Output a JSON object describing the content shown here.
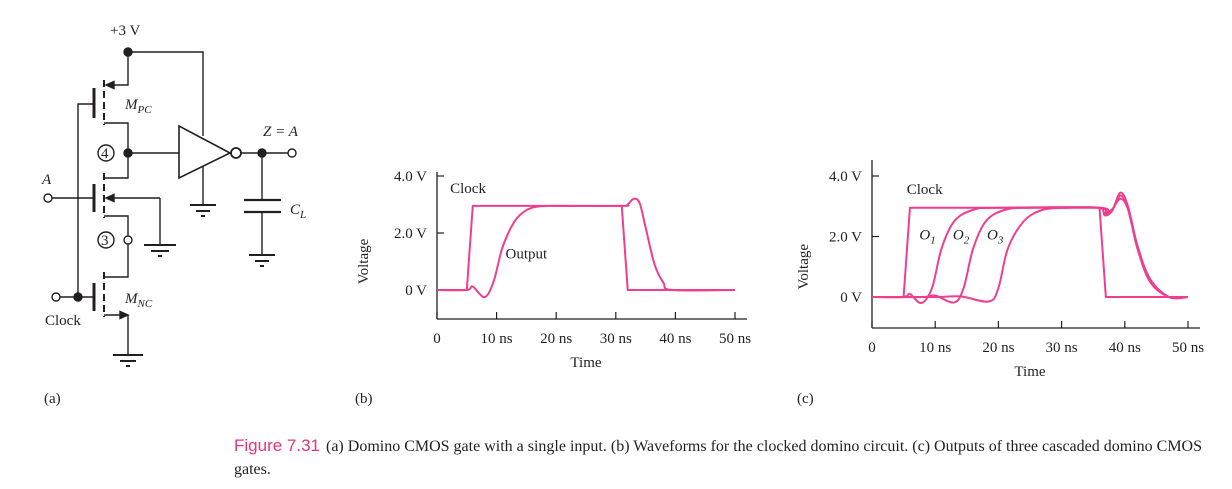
{
  "circuit": {
    "supply_label": "+3 V",
    "pmos_label": "M",
    "pmos_sub": "PC",
    "nmos_label": "M",
    "nmos_sub": "NC",
    "node4_label": "4",
    "node3_label": "3",
    "input_label": "A",
    "clock_label": "Clock",
    "output_label": "Z = A",
    "cap_label": "C",
    "cap_sub": "L"
  },
  "panel_labels": {
    "a": "(a)",
    "b": "(b)",
    "c": "(c)"
  },
  "colors": {
    "trace": "#ee3f8f",
    "caption_accent": "#e8327c",
    "ink": "#231f20"
  },
  "caption": {
    "figure": "Figure 7.31",
    "text": "(a) Domino CMOS gate with a single input. (b) Waveforms for the clocked domino circuit. (c) Outputs of three cascaded domino CMOS gates."
  },
  "chart_data": [
    {
      "type": "line",
      "panel": "b",
      "xlabel": "Time",
      "ylabel": "Voltage",
      "xlim": [
        0,
        50
      ],
      "ylim": [
        -1,
        4.2
      ],
      "xticks": [
        0,
        10,
        20,
        30,
        40,
        50
      ],
      "xtick_labels": [
        "0",
        "10 ns",
        "20 ns",
        "30 ns",
        "40 ns",
        "50 ns"
      ],
      "yticks": [
        0,
        2,
        4
      ],
      "ytick_labels": [
        "0 V",
        "2.0 V",
        "4.0 V"
      ],
      "annotations": [
        {
          "text": "Clock",
          "x": 2.2,
          "y": 3.4
        },
        {
          "text": "Output",
          "x": 11.5,
          "y": 1.1
        }
      ],
      "series": [
        {
          "name": "Clock",
          "interp": "linear",
          "x": [
            0,
            5,
            6,
            31,
            32,
            50
          ],
          "y": [
            0,
            0,
            2.95,
            2.95,
            0,
            0
          ]
        },
        {
          "name": "Output",
          "interp": "smooth",
          "x": [
            0,
            5,
            6,
            8,
            9.5,
            11,
            13,
            15,
            17,
            20,
            31,
            32,
            33,
            34,
            35,
            36.5,
            38,
            39.5,
            50
          ],
          "y": [
            0,
            0,
            0.12,
            -0.25,
            0.3,
            1.5,
            2.4,
            2.8,
            2.93,
            2.95,
            2.95,
            3.0,
            3.2,
            3.05,
            2.2,
            0.9,
            0.25,
            0,
            0
          ]
        }
      ]
    },
    {
      "type": "line",
      "panel": "c",
      "xlabel": "Time",
      "ylabel": "Voltage",
      "xlim": [
        0,
        50
      ],
      "ylim": [
        -1,
        4.3
      ],
      "xticks": [
        0,
        10,
        20,
        30,
        40,
        50
      ],
      "xtick_labels": [
        "0",
        "10 ns",
        "20 ns",
        "30 ns",
        "40 ns",
        "50 ns"
      ],
      "yticks": [
        0,
        2,
        4
      ],
      "ytick_labels": [
        "0 V",
        "2.0 V",
        "4.0 V"
      ],
      "annotations": [
        {
          "text": "Clock",
          "x": 5.5,
          "y": 3.4
        },
        {
          "text": "O",
          "sub": "1",
          "x": 7.5,
          "y": 1.9
        },
        {
          "text": "O",
          "sub": "2",
          "x": 12.8,
          "y": 1.9
        },
        {
          "text": "O",
          "sub": "3",
          "x": 18.2,
          "y": 1.9
        }
      ],
      "series": [
        {
          "name": "Clock",
          "interp": "linear",
          "x": [
            0,
            5,
            6,
            36,
            37,
            50
          ],
          "y": [
            0,
            0,
            2.95,
            2.95,
            0,
            0
          ]
        },
        {
          "name": "O1",
          "interp": "smooth",
          "x": [
            0,
            5,
            6,
            7.8,
            9.5,
            11,
            13,
            16,
            20,
            36,
            36.8,
            38,
            39.3,
            40.5,
            42,
            44,
            47,
            50
          ],
          "y": [
            0,
            0,
            0.1,
            -0.2,
            0.3,
            1.6,
            2.5,
            2.88,
            2.95,
            2.95,
            2.75,
            2.9,
            3.25,
            2.9,
            1.6,
            0.5,
            0,
            0
          ]
        },
        {
          "name": "O2",
          "interp": "smooth",
          "x": [
            0,
            8,
            10,
            13,
            14.5,
            16,
            18,
            21,
            25,
            36,
            36.8,
            38,
            39.3,
            40.5,
            42,
            44,
            47,
            50
          ],
          "y": [
            0,
            0,
            0.05,
            -0.18,
            0.3,
            1.6,
            2.5,
            2.88,
            2.95,
            2.95,
            2.7,
            2.85,
            3.45,
            3.0,
            1.7,
            0.6,
            0,
            0
          ]
        },
        {
          "name": "O3",
          "interp": "smooth",
          "x": [
            0,
            10,
            14,
            18.5,
            20,
            21.5,
            24,
            27,
            31,
            36,
            36.8,
            38,
            39.3,
            40.5,
            42,
            44,
            47,
            50
          ],
          "y": [
            0,
            0,
            0.02,
            -0.15,
            0.3,
            1.6,
            2.5,
            2.88,
            2.95,
            2.95,
            2.72,
            2.87,
            3.35,
            2.95,
            1.65,
            0.55,
            0,
            0
          ]
        }
      ]
    }
  ]
}
